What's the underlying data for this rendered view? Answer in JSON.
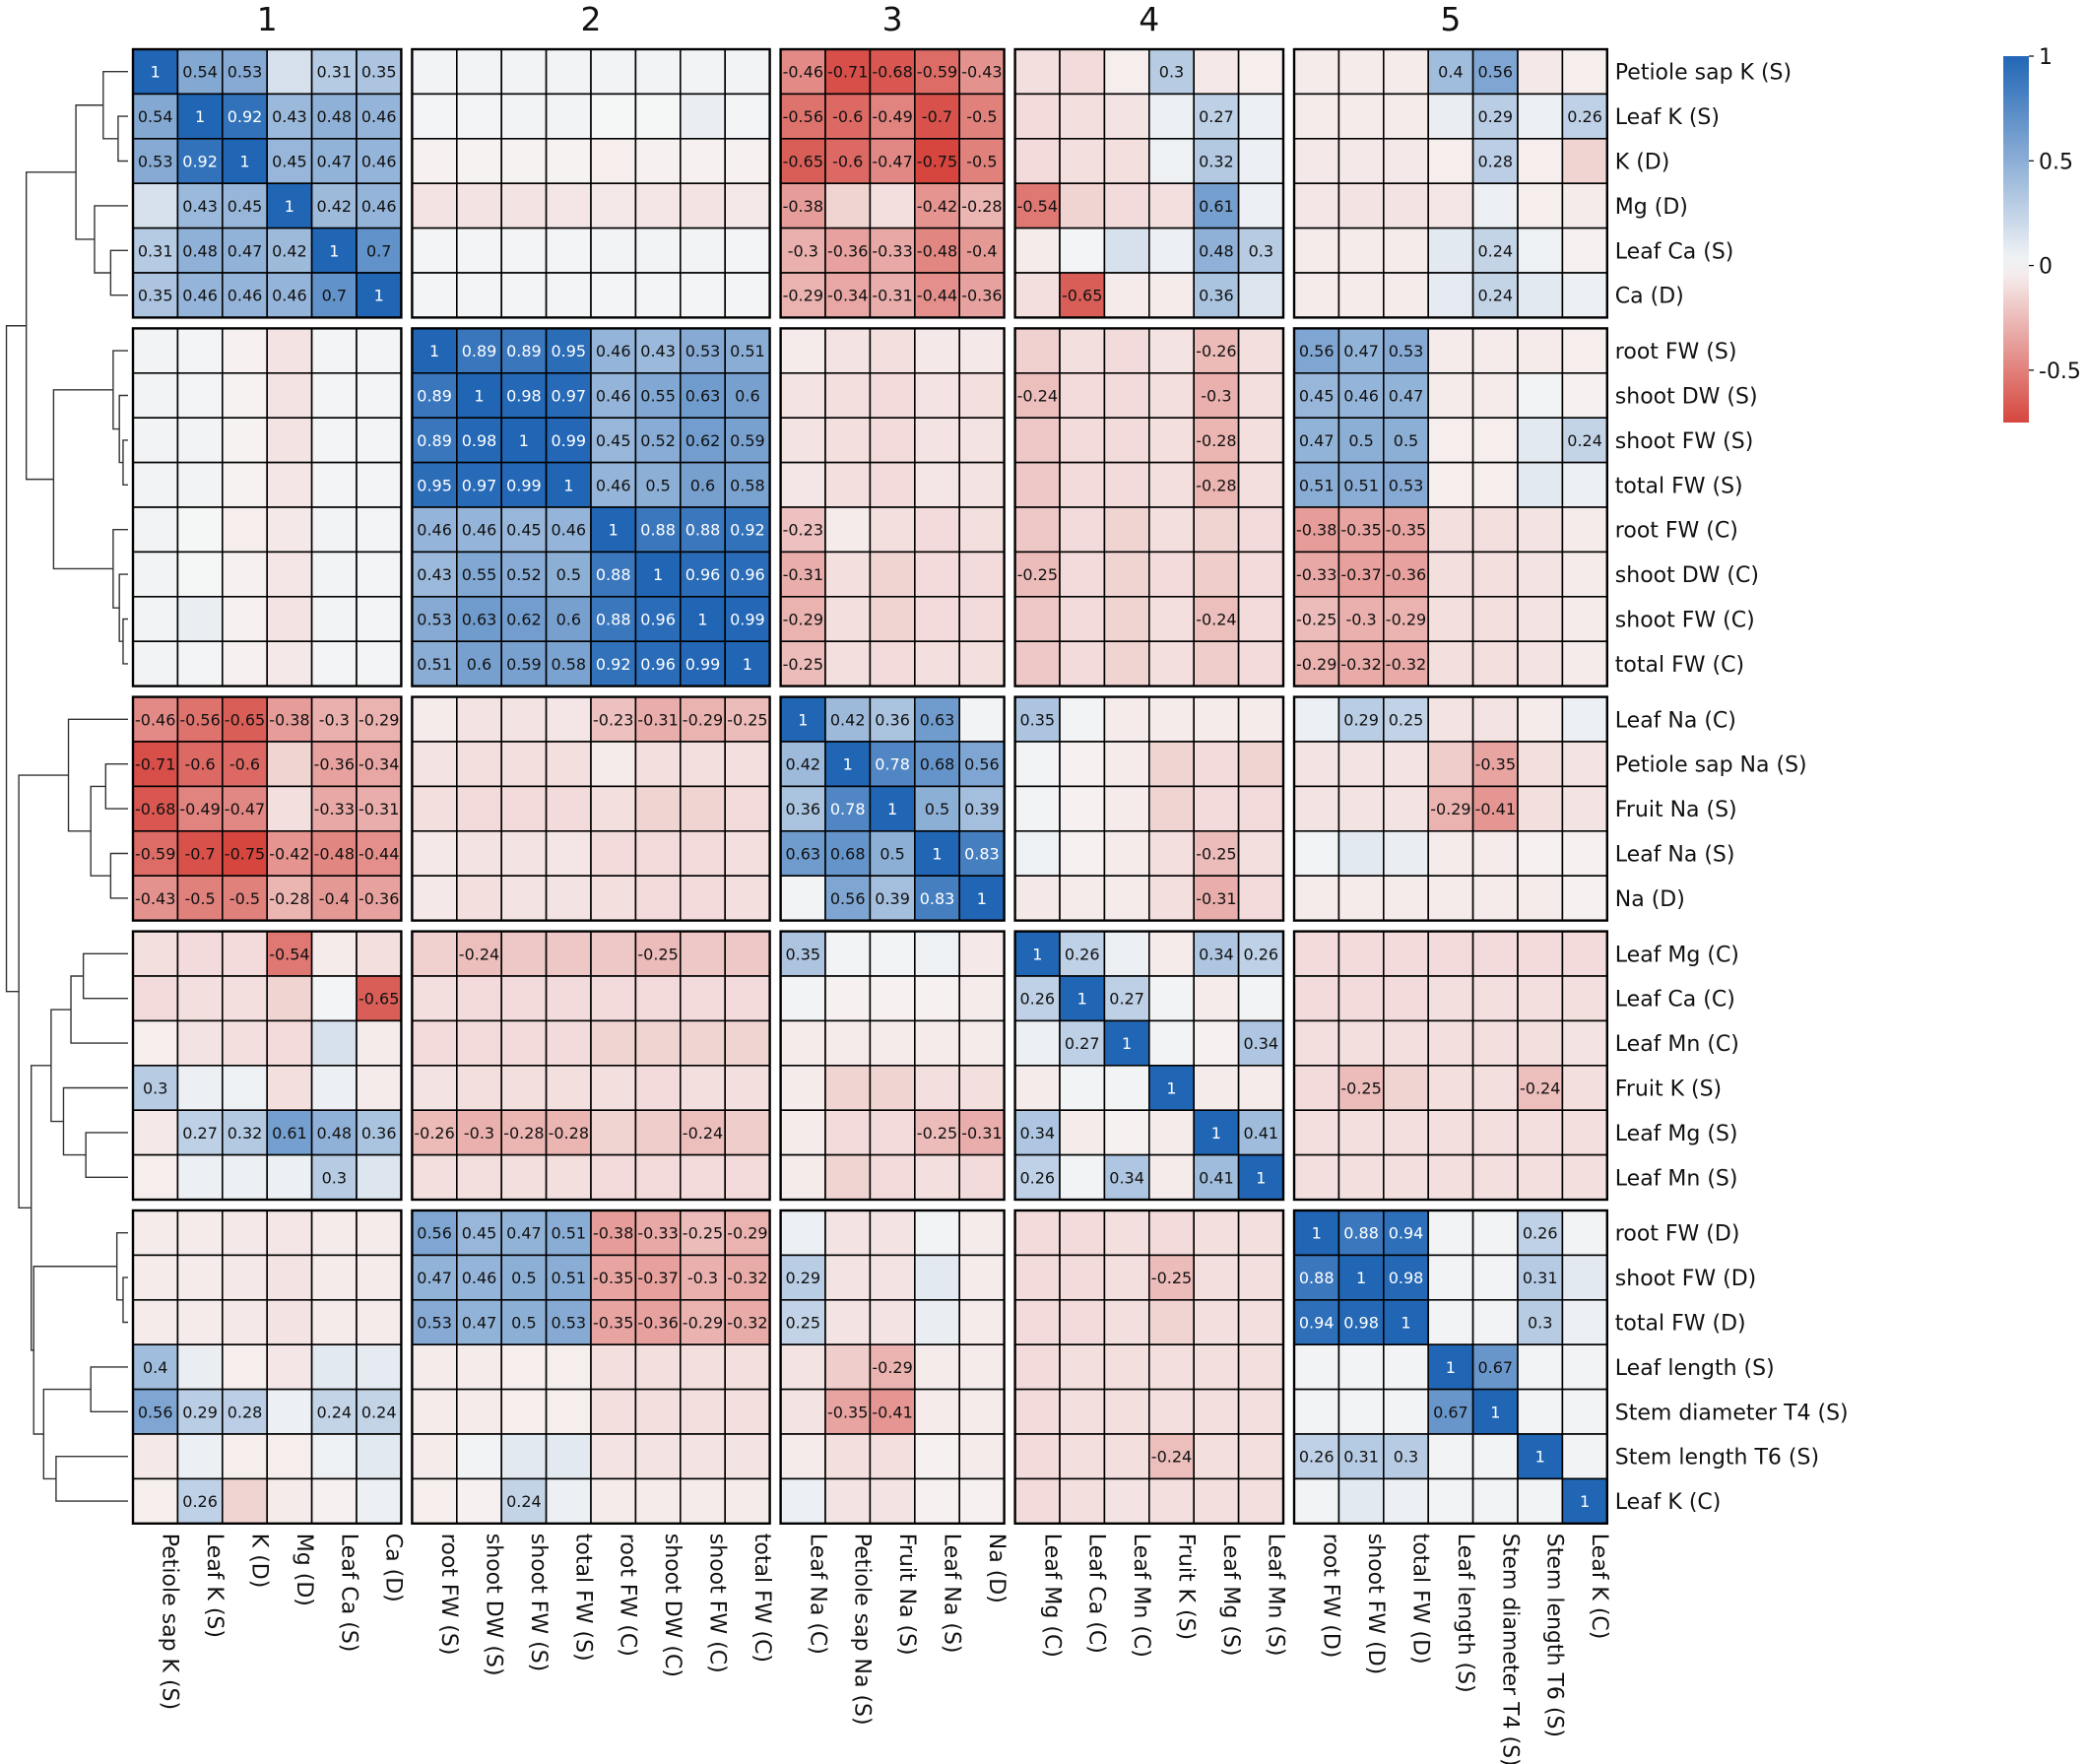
{
  "chart_data": {
    "type": "heatmap",
    "title": "",
    "variables": [
      "Petiole sap K (S)",
      "Leaf K (S)",
      "K (D)",
      "Mg (D)",
      "Leaf Ca (S)",
      "Ca (D)",
      "root FW (S)",
      "shoot DW (S)",
      "shoot FW (S)",
      "total FW (S)",
      "root FW (C)",
      "shoot DW (C)",
      "shoot FW (C)",
      "total FW (C)",
      "Leaf Na (C)",
      "Petiole sap Na (S)",
      "Fruit Na (S)",
      "Leaf Na (S)",
      "Na (D)",
      "Leaf Mg (C)",
      "Leaf Ca (C)",
      "Leaf Mn (C)",
      "Fruit K (S)",
      "Leaf Mg (S)",
      "Leaf Mn (S)",
      "root FW (D)",
      "shoot FW (D)",
      "total FW (D)",
      "Leaf length (S)",
      "Stem diameter T4 (S)",
      "Stem length T6 (S)",
      "Leaf K (C)"
    ],
    "cluster_labels": [
      "1",
      "2",
      "3",
      "4",
      "5"
    ],
    "cluster_sizes": [
      6,
      8,
      5,
      6,
      7
    ],
    "color_scale": {
      "min": -0.75,
      "max": 1,
      "low": "#d6463f",
      "mid": "#f7f7f7",
      "high": "#2166b5"
    },
    "legend_ticks": [
      1,
      0.5,
      0,
      -0.5
    ],
    "label_threshold": 0.23,
    "matrix": [
      [
        1,
        0.54,
        0.53,
        0.15,
        0.31,
        0.35,
        0.03,
        0.03,
        0.03,
        0.03,
        0.03,
        0.03,
        0.03,
        0.03,
        -0.46,
        -0.71,
        -0.68,
        -0.59,
        -0.43,
        -0.1,
        -0.12,
        -0.04,
        0.3,
        -0.06,
        -0.04,
        -0.05,
        -0.05,
        -0.05,
        0.4,
        0.56,
        -0.06,
        -0.04
      ],
      [
        0.54,
        1,
        0.92,
        0.43,
        0.48,
        0.46,
        0.02,
        0.02,
        0.03,
        0.03,
        0.01,
        0.01,
        0.06,
        0.02,
        -0.56,
        -0.6,
        -0.49,
        -0.7,
        -0.5,
        -0.12,
        -0.1,
        -0.08,
        0.05,
        0.27,
        0.05,
        -0.05,
        -0.05,
        -0.05,
        0.06,
        0.29,
        0.05,
        0.26
      ],
      [
        0.53,
        0.92,
        1,
        0.45,
        0.47,
        0.46,
        -0.03,
        -0.02,
        -0.02,
        -0.02,
        -0.04,
        -0.03,
        -0.03,
        -0.03,
        -0.65,
        -0.6,
        -0.47,
        -0.75,
        -0.5,
        -0.12,
        -0.1,
        -0.1,
        0.04,
        0.32,
        0.05,
        -0.06,
        -0.06,
        -0.06,
        -0.04,
        0.28,
        -0.04,
        -0.15
      ],
      [
        0.15,
        0.43,
        0.45,
        1,
        0.42,
        0.46,
        -0.08,
        -0.08,
        -0.08,
        -0.07,
        -0.06,
        -0.07,
        -0.08,
        -0.06,
        -0.38,
        -0.15,
        -0.1,
        -0.42,
        -0.28,
        -0.54,
        -0.15,
        -0.12,
        -0.1,
        0.61,
        0.05,
        -0.07,
        -0.08,
        -0.08,
        -0.07,
        0.05,
        -0.04,
        -0.05
      ],
      [
        0.31,
        0.48,
        0.47,
        0.42,
        1,
        0.7,
        0.02,
        0.02,
        0.02,
        0.02,
        0.03,
        0.03,
        0.03,
        0.02,
        -0.3,
        -0.36,
        -0.33,
        -0.48,
        -0.4,
        -0.05,
        0.02,
        0.15,
        0.05,
        0.48,
        0.3,
        -0.05,
        -0.05,
        -0.05,
        0.1,
        0.24,
        0.04,
        -0.03
      ],
      [
        0.35,
        0.46,
        0.46,
        0.46,
        0.7,
        1,
        0.02,
        0.02,
        0.02,
        0.02,
        0.02,
        0.02,
        0.02,
        0.02,
        -0.29,
        -0.34,
        -0.31,
        -0.44,
        -0.36,
        -0.1,
        -0.65,
        -0.05,
        -0.05,
        0.36,
        0.12,
        -0.05,
        -0.05,
        -0.05,
        0.08,
        0.24,
        0.1,
        0.05
      ],
      [
        0.03,
        0.02,
        -0.03,
        -0.08,
        0.02,
        0.02,
        1,
        0.89,
        0.89,
        0.95,
        0.46,
        0.43,
        0.53,
        0.51,
        -0.05,
        -0.08,
        -0.1,
        -0.06,
        -0.06,
        -0.16,
        -0.1,
        -0.12,
        -0.08,
        -0.26,
        -0.1,
        0.56,
        0.47,
        0.53,
        -0.05,
        -0.05,
        -0.05,
        -0.04
      ],
      [
        0.03,
        0.02,
        -0.02,
        -0.08,
        0.02,
        0.02,
        0.89,
        1,
        0.98,
        0.97,
        0.46,
        0.55,
        0.63,
        0.6,
        -0.08,
        -0.1,
        -0.12,
        -0.08,
        -0.1,
        -0.24,
        -0.12,
        -0.12,
        -0.1,
        -0.3,
        -0.1,
        0.45,
        0.46,
        0.47,
        -0.05,
        -0.05,
        0.03,
        -0.03
      ],
      [
        0.03,
        0.03,
        -0.02,
        -0.08,
        0.02,
        0.02,
        0.89,
        0.98,
        1,
        0.99,
        0.45,
        0.52,
        0.62,
        0.59,
        -0.08,
        -0.1,
        -0.12,
        -0.08,
        -0.08,
        -0.2,
        -0.12,
        -0.12,
        -0.1,
        -0.28,
        -0.1,
        0.47,
        0.5,
        0.5,
        -0.04,
        -0.04,
        0.1,
        0.24
      ],
      [
        0.03,
        0.03,
        -0.02,
        -0.07,
        0.02,
        0.02,
        0.95,
        0.97,
        0.99,
        1,
        0.46,
        0.5,
        0.6,
        0.58,
        -0.07,
        -0.1,
        -0.12,
        -0.07,
        -0.08,
        -0.2,
        -0.12,
        -0.12,
        -0.1,
        -0.28,
        -0.1,
        0.51,
        0.51,
        0.53,
        -0.04,
        -0.04,
        0.1,
        0.05
      ],
      [
        0.03,
        0.01,
        -0.04,
        -0.06,
        0.03,
        0.02,
        0.46,
        0.46,
        0.45,
        0.46,
        1,
        0.88,
        0.88,
        0.92,
        -0.23,
        -0.05,
        -0.1,
        -0.12,
        -0.1,
        -0.2,
        -0.12,
        -0.15,
        -0.1,
        -0.15,
        -0.12,
        -0.38,
        -0.35,
        -0.35,
        -0.1,
        -0.1,
        -0.08,
        -0.05
      ],
      [
        0.03,
        0.01,
        -0.03,
        -0.07,
        0.03,
        0.02,
        0.43,
        0.55,
        0.52,
        0.5,
        0.88,
        1,
        0.96,
        0.96,
        -0.31,
        -0.1,
        -0.15,
        -0.12,
        -0.12,
        -0.25,
        -0.12,
        -0.15,
        -0.12,
        -0.18,
        -0.12,
        -0.33,
        -0.37,
        -0.36,
        -0.1,
        -0.1,
        -0.08,
        -0.05
      ],
      [
        0.03,
        0.06,
        -0.03,
        -0.08,
        0.03,
        0.02,
        0.53,
        0.63,
        0.62,
        0.6,
        0.88,
        0.96,
        1,
        0.99,
        -0.29,
        -0.1,
        -0.15,
        -0.12,
        -0.12,
        -0.2,
        -0.12,
        -0.15,
        -0.1,
        -0.24,
        -0.12,
        -0.25,
        -0.3,
        -0.29,
        -0.1,
        -0.1,
        -0.08,
        -0.05
      ],
      [
        0.03,
        0.02,
        -0.03,
        -0.06,
        0.02,
        0.02,
        0.51,
        0.6,
        0.59,
        0.58,
        0.92,
        0.96,
        0.99,
        1,
        -0.25,
        -0.1,
        -0.12,
        -0.1,
        -0.1,
        -0.2,
        -0.12,
        -0.15,
        -0.1,
        -0.18,
        -0.12,
        -0.29,
        -0.32,
        -0.32,
        -0.1,
        -0.1,
        -0.08,
        -0.05
      ],
      [
        -0.46,
        -0.56,
        -0.65,
        -0.38,
        -0.3,
        -0.29,
        -0.05,
        -0.08,
        -0.08,
        -0.07,
        -0.23,
        -0.31,
        -0.29,
        -0.25,
        1,
        0.42,
        0.36,
        0.63,
        0.03,
        0.35,
        0.03,
        -0.05,
        -0.05,
        -0.05,
        -0.05,
        0.05,
        0.29,
        0.25,
        -0.08,
        -0.08,
        -0.05,
        0.05
      ],
      [
        -0.71,
        -0.6,
        -0.6,
        -0.15,
        -0.36,
        -0.34,
        -0.08,
        -0.1,
        -0.1,
        -0.1,
        -0.05,
        -0.1,
        -0.1,
        -0.1,
        0.42,
        1,
        0.78,
        0.68,
        0.56,
        0.03,
        -0.03,
        -0.05,
        -0.15,
        -0.12,
        -0.15,
        -0.08,
        -0.08,
        -0.08,
        -0.18,
        -0.35,
        -0.1,
        -0.08
      ],
      [
        -0.68,
        -0.49,
        -0.47,
        -0.1,
        -0.33,
        -0.31,
        -0.1,
        -0.12,
        -0.12,
        -0.12,
        -0.1,
        -0.15,
        -0.15,
        -0.12,
        0.36,
        0.78,
        1,
        0.5,
        0.39,
        0.03,
        -0.03,
        -0.05,
        -0.15,
        -0.12,
        -0.12,
        -0.08,
        -0.08,
        -0.08,
        -0.29,
        -0.41,
        -0.1,
        -0.08
      ],
      [
        -0.59,
        -0.7,
        -0.75,
        -0.42,
        -0.48,
        -0.44,
        -0.06,
        -0.08,
        -0.08,
        -0.07,
        -0.12,
        -0.12,
        -0.12,
        -0.1,
        0.63,
        0.68,
        0.5,
        1,
        0.83,
        0.04,
        -0.03,
        -0.05,
        -0.1,
        -0.25,
        -0.1,
        0.03,
        0.1,
        0.06,
        -0.05,
        -0.05,
        -0.03,
        -0.03
      ],
      [
        -0.43,
        -0.5,
        -0.5,
        -0.28,
        -0.4,
        -0.36,
        -0.06,
        -0.1,
        -0.08,
        -0.08,
        -0.1,
        -0.12,
        -0.12,
        -0.1,
        0.03,
        0.56,
        0.39,
        0.83,
        1,
        -0.06,
        -0.05,
        -0.05,
        -0.1,
        -0.31,
        -0.12,
        -0.05,
        -0.05,
        -0.05,
        -0.05,
        -0.05,
        -0.05,
        -0.03
      ],
      [
        -0.1,
        -0.12,
        -0.12,
        -0.54,
        -0.05,
        -0.1,
        -0.16,
        -0.24,
        -0.2,
        -0.2,
        -0.2,
        -0.25,
        -0.2,
        -0.2,
        0.35,
        0.03,
        0.03,
        0.04,
        -0.06,
        1,
        0.26,
        0.05,
        -0.05,
        0.34,
        0.26,
        -0.12,
        -0.12,
        -0.12,
        -0.12,
        -0.12,
        -0.12,
        -0.12
      ],
      [
        -0.12,
        -0.1,
        -0.1,
        -0.15,
        0.02,
        -0.65,
        -0.1,
        -0.12,
        -0.12,
        -0.12,
        -0.12,
        -0.12,
        -0.12,
        -0.12,
        0.03,
        -0.03,
        -0.03,
        -0.03,
        -0.05,
        0.26,
        1,
        0.27,
        0.03,
        -0.05,
        0.03,
        -0.12,
        -0.12,
        -0.12,
        -0.1,
        -0.1,
        -0.1,
        -0.1
      ],
      [
        -0.04,
        -0.08,
        -0.1,
        -0.12,
        0.15,
        -0.05,
        -0.12,
        -0.12,
        -0.12,
        -0.12,
        -0.15,
        -0.15,
        -0.15,
        -0.15,
        -0.05,
        -0.05,
        -0.05,
        -0.05,
        -0.05,
        0.05,
        0.27,
        1,
        0.03,
        -0.03,
        0.34,
        -0.1,
        -0.1,
        -0.1,
        -0.1,
        -0.1,
        -0.1,
        -0.08
      ],
      [
        0.3,
        0.05,
        0.04,
        -0.1,
        0.05,
        -0.05,
        -0.08,
        -0.1,
        -0.1,
        -0.1,
        -0.1,
        -0.12,
        -0.1,
        -0.1,
        -0.05,
        -0.15,
        -0.15,
        -0.1,
        -0.1,
        -0.05,
        0.03,
        0.03,
        1,
        -0.05,
        -0.05,
        -0.12,
        -0.25,
        -0.15,
        -0.1,
        -0.1,
        -0.24,
        -0.1
      ],
      [
        -0.06,
        0.27,
        0.32,
        0.61,
        0.48,
        0.36,
        -0.26,
        -0.3,
        -0.28,
        -0.28,
        -0.15,
        -0.18,
        -0.24,
        -0.18,
        -0.05,
        -0.12,
        -0.12,
        -0.25,
        -0.31,
        0.34,
        -0.05,
        -0.03,
        -0.05,
        1,
        0.41,
        -0.1,
        -0.1,
        -0.1,
        -0.1,
        -0.1,
        -0.1,
        -0.1
      ],
      [
        -0.04,
        0.05,
        0.05,
        0.05,
        0.3,
        0.12,
        -0.1,
        -0.1,
        -0.1,
        -0.1,
        -0.12,
        -0.12,
        -0.12,
        -0.12,
        -0.05,
        -0.15,
        -0.12,
        -0.1,
        -0.12,
        0.26,
        0.03,
        0.34,
        -0.05,
        0.41,
        1,
        -0.1,
        -0.1,
        -0.1,
        -0.1,
        -0.1,
        -0.1,
        -0.1
      ],
      [
        -0.05,
        -0.05,
        -0.06,
        -0.07,
        -0.05,
        -0.05,
        0.56,
        0.45,
        0.47,
        0.51,
        -0.38,
        -0.33,
        -0.25,
        -0.29,
        0.05,
        -0.08,
        -0.08,
        0.03,
        -0.05,
        -0.12,
        -0.12,
        -0.1,
        -0.12,
        -0.1,
        -0.1,
        1,
        0.88,
        0.94,
        0.03,
        0.03,
        0.26,
        0.03
      ],
      [
        -0.05,
        -0.05,
        -0.06,
        -0.08,
        -0.05,
        -0.05,
        0.47,
        0.46,
        0.5,
        0.51,
        -0.35,
        -0.37,
        -0.3,
        -0.32,
        0.29,
        -0.08,
        -0.08,
        0.1,
        -0.05,
        -0.12,
        -0.12,
        -0.1,
        -0.25,
        -0.1,
        -0.1,
        0.88,
        1,
        0.98,
        0.03,
        0.03,
        0.31,
        0.1
      ],
      [
        -0.05,
        -0.05,
        -0.06,
        -0.08,
        -0.05,
        -0.05,
        0.53,
        0.47,
        0.5,
        0.53,
        -0.35,
        -0.36,
        -0.29,
        -0.32,
        0.25,
        -0.08,
        -0.08,
        0.06,
        -0.05,
        -0.12,
        -0.12,
        -0.1,
        -0.15,
        -0.1,
        -0.1,
        0.94,
        0.98,
        1,
        0.03,
        0.03,
        0.3,
        0.05
      ],
      [
        0.4,
        0.06,
        -0.04,
        -0.07,
        0.1,
        0.08,
        -0.05,
        -0.05,
        -0.04,
        -0.04,
        -0.1,
        -0.1,
        -0.1,
        -0.1,
        -0.08,
        -0.18,
        -0.29,
        -0.05,
        -0.05,
        -0.12,
        -0.1,
        -0.1,
        -0.1,
        -0.1,
        -0.1,
        0.03,
        0.03,
        0.03,
        1,
        0.67,
        0.03,
        0.03
      ],
      [
        0.56,
        0.29,
        0.28,
        0.05,
        0.24,
        0.24,
        -0.05,
        -0.05,
        -0.04,
        -0.04,
        -0.1,
        -0.1,
        -0.1,
        -0.1,
        -0.08,
        -0.35,
        -0.41,
        -0.05,
        -0.05,
        -0.12,
        -0.1,
        -0.1,
        -0.1,
        -0.1,
        -0.1,
        0.03,
        0.03,
        0.03,
        0.67,
        1,
        0.03,
        0.03
      ],
      [
        -0.06,
        0.05,
        -0.04,
        -0.04,
        0.04,
        0.1,
        -0.05,
        0.03,
        0.1,
        0.1,
        -0.08,
        -0.08,
        -0.08,
        -0.08,
        -0.05,
        -0.1,
        -0.1,
        -0.03,
        -0.05,
        -0.12,
        -0.1,
        -0.1,
        -0.24,
        -0.1,
        -0.1,
        0.26,
        0.31,
        0.3,
        0.03,
        0.03,
        1,
        0.03
      ],
      [
        -0.04,
        0.26,
        -0.15,
        -0.05,
        -0.03,
        0.05,
        -0.04,
        -0.03,
        0.24,
        0.05,
        -0.05,
        -0.05,
        -0.05,
        -0.05,
        0.05,
        -0.08,
        -0.08,
        -0.03,
        -0.03,
        -0.12,
        -0.1,
        -0.08,
        -0.1,
        -0.1,
        -0.1,
        0.03,
        0.1,
        0.05,
        0.03,
        0.03,
        0.03,
        1
      ]
    ]
  }
}
